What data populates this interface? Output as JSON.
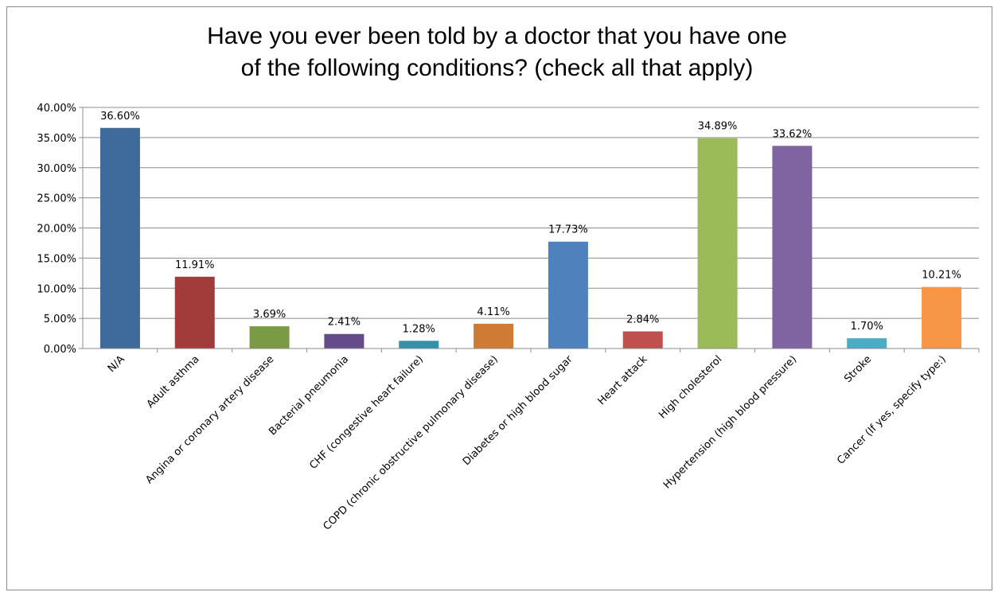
{
  "chart_data": {
    "type": "bar",
    "title_lines": [
      "Have you ever been told by a doctor that you have one",
      "of the following conditions? (check all that apply)"
    ],
    "xlabel": "",
    "ylabel": "",
    "ylim": [
      0,
      40
    ],
    "y_ticks": [
      "0.00%",
      "5.00%",
      "10.00%",
      "15.00%",
      "20.00%",
      "25.00%",
      "30.00%",
      "35.00%",
      "40.00%"
    ],
    "grid": true,
    "legend": "none",
    "categories": [
      "N/A",
      "Adult asthma",
      "Angina or coronary artery disease",
      "Bacterial pneumonia",
      "CHF (congestive heart failure)",
      "COPD (chronic obstructive pulmonary disease)",
      "Diabetes or high blood sugar",
      "Heart attack",
      "High cholesterol",
      "Hypertension (high blood pressure)",
      "Stroke",
      "Cancer (If yes, specify type:)"
    ],
    "values": [
      36.6,
      11.91,
      3.69,
      2.41,
      1.28,
      4.11,
      17.73,
      2.84,
      34.89,
      33.62,
      1.7,
      10.21
    ],
    "data_labels": [
      "36.60%",
      "11.91%",
      "3.69%",
      "2.41%",
      "1.28%",
      "4.11%",
      "17.73%",
      "2.84%",
      "34.89%",
      "33.62%",
      "1.70%",
      "10.21%"
    ],
    "colors": [
      "#3e6a9c",
      "#a23c3a",
      "#7a9a45",
      "#644b8a",
      "#3690a8",
      "#cf7b35",
      "#4f81bd",
      "#c0504d",
      "#9bbb59",
      "#8064a2",
      "#4bacc6",
      "#f79646"
    ]
  }
}
